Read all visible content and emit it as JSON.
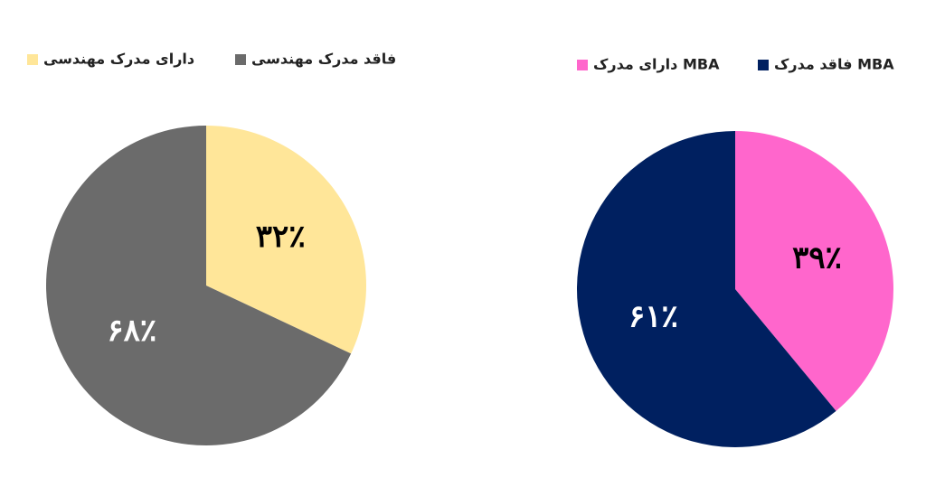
{
  "chart_data": [
    {
      "type": "pie",
      "categories": [
        "دارای مدرک مهندسی",
        "فاقد مدرک مهندسی"
      ],
      "values": [
        32,
        68
      ],
      "value_labels": [
        "۳۲٪",
        "۶۸٪"
      ],
      "colors": [
        "#ffe699",
        "#6b6b6b"
      ]
    },
    {
      "type": "pie",
      "categories": [
        "دارای مدرک MBA",
        "فاقد مدرک MBA"
      ],
      "values": [
        39,
        61
      ],
      "value_labels": [
        "۳۹٪",
        "۶۱٪"
      ],
      "colors": [
        "#ff66cc",
        "#002060"
      ]
    }
  ]
}
